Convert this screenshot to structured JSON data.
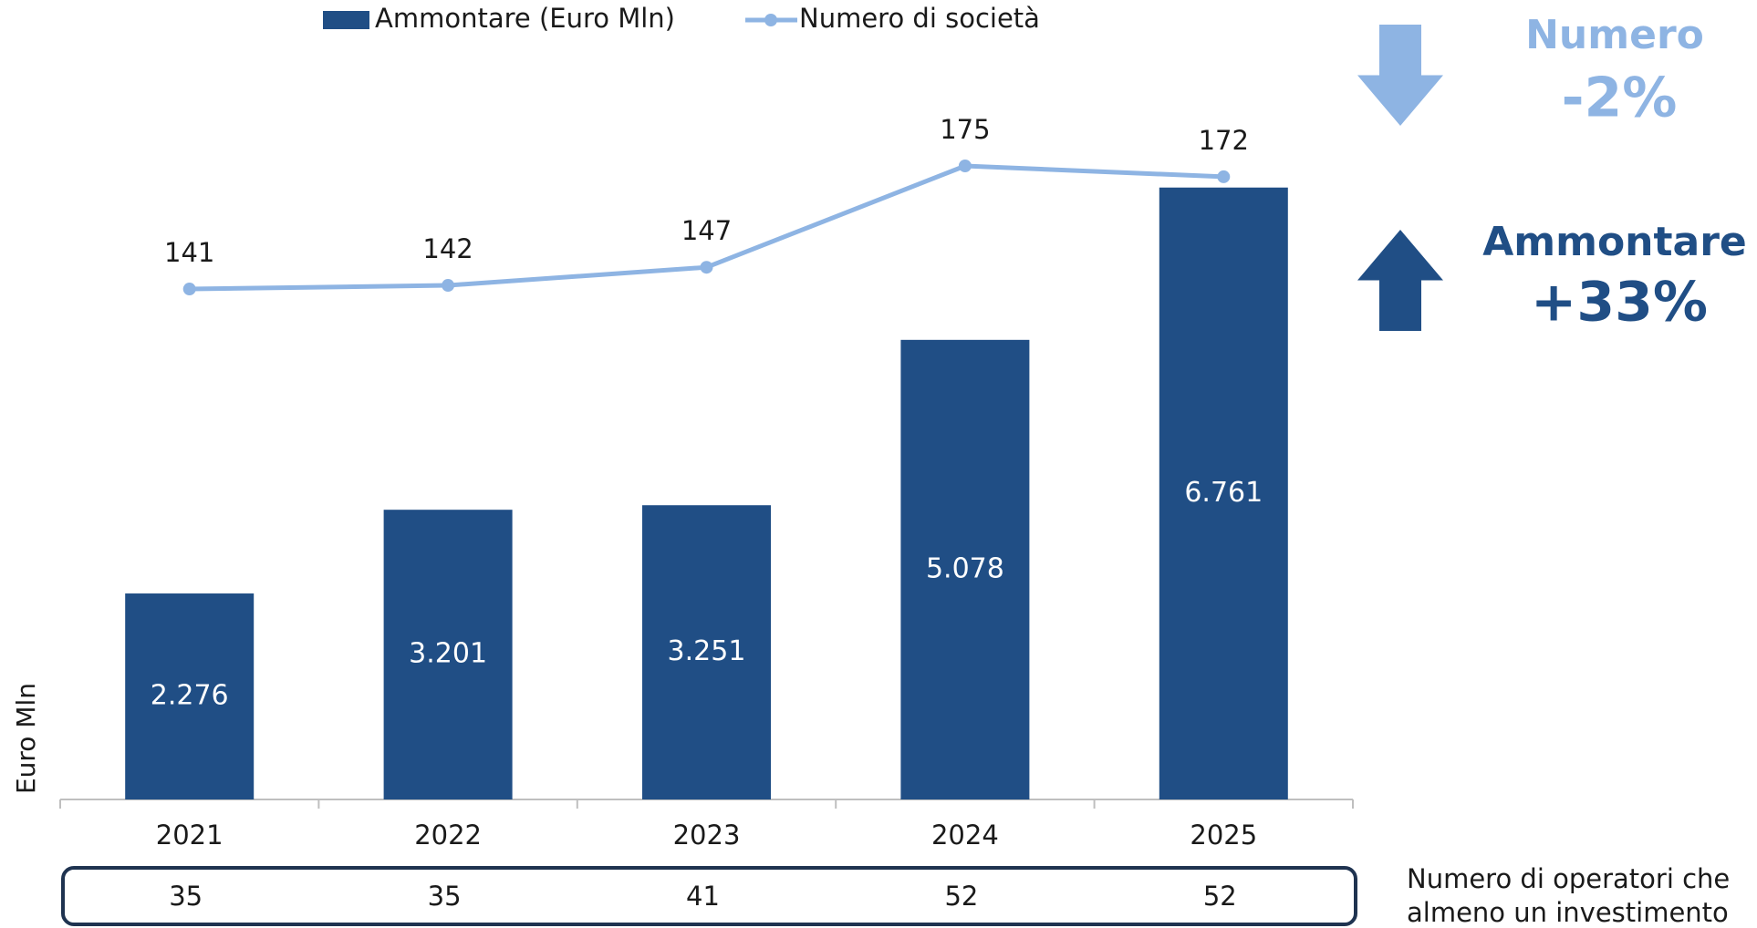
{
  "chart_data": {
    "type": "bar",
    "categories": [
      "2021",
      "2022",
      "2023",
      "2024",
      "2025"
    ],
    "series": [
      {
        "name": "Ammontare (Euro Mln)",
        "type": "bar",
        "color": "#204e85",
        "values": [
          2276,
          3201,
          3251,
          5078,
          6761
        ],
        "value_labels": [
          "2.276",
          "3.201",
          "3.251",
          "5.078",
          "6.761"
        ]
      },
      {
        "name": "Numero di società",
        "type": "line",
        "axis": "y2",
        "color": "#8eb4e3",
        "values": [
          141,
          142,
          147,
          175,
          172
        ]
      }
    ],
    "ylim": [
      0,
      7000
    ],
    "y2lim": [
      0,
      175
    ],
    "ylabel": "Euro Mln",
    "legend": "top",
    "annotations": [
      {
        "label": "Numero",
        "change": "-2%",
        "color": "#8eb4e3",
        "direction": "down"
      },
      {
        "label": "Ammontare",
        "change": "+33%",
        "color": "#204e85",
        "direction": "up"
      }
    ],
    "operators_label": [
      "Numero di operatori che",
      "almeno un investimento"
    ],
    "operators": [
      35,
      35,
      41,
      52,
      52
    ]
  }
}
